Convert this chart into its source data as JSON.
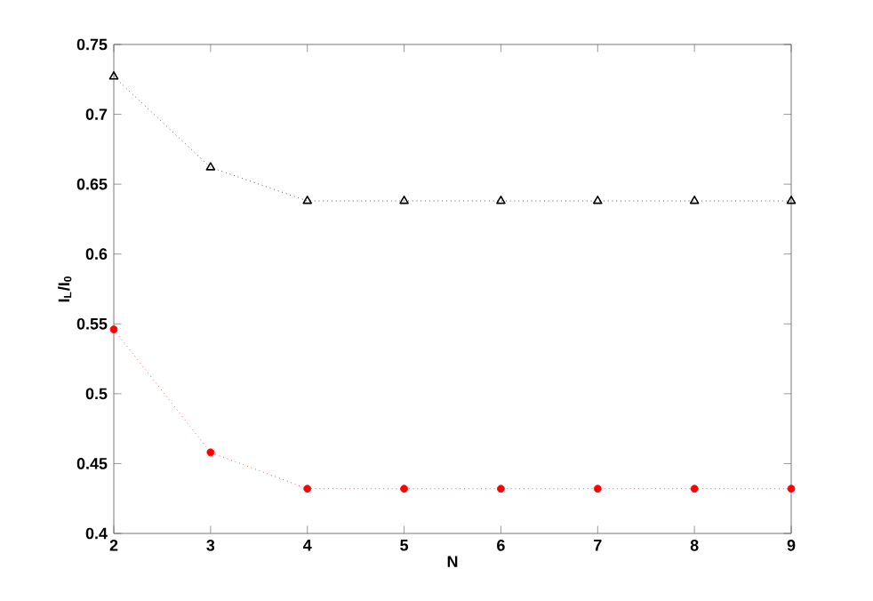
{
  "chart_data": {
    "type": "line",
    "xlabel": "N",
    "ylabel": "I$_{L}$/I$_{0}$",
    "x": [
      2,
      3,
      4,
      5,
      6,
      7,
      8,
      9
    ],
    "series": [
      {
        "color": "#000000",
        "marker": "triangle",
        "values": [
          0.727,
          0.662,
          0.638,
          0.638,
          0.638,
          0.638,
          0.638,
          0.638
        ]
      },
      {
        "color": "#ff0000",
        "marker": "circle",
        "values": [
          0.546,
          0.458,
          0.432,
          0.432,
          0.432,
          0.432,
          0.432,
          0.432
        ]
      }
    ],
    "xlim": [
      2,
      9
    ],
    "ylim": [
      0.4,
      0.75
    ],
    "xticks": [
      2,
      3,
      4,
      5,
      6,
      7,
      8,
      9
    ],
    "yticks": [
      0.4,
      0.45,
      0.5,
      0.55,
      0.6,
      0.65,
      0.7,
      0.75
    ],
    "line_style": "dotted"
  }
}
